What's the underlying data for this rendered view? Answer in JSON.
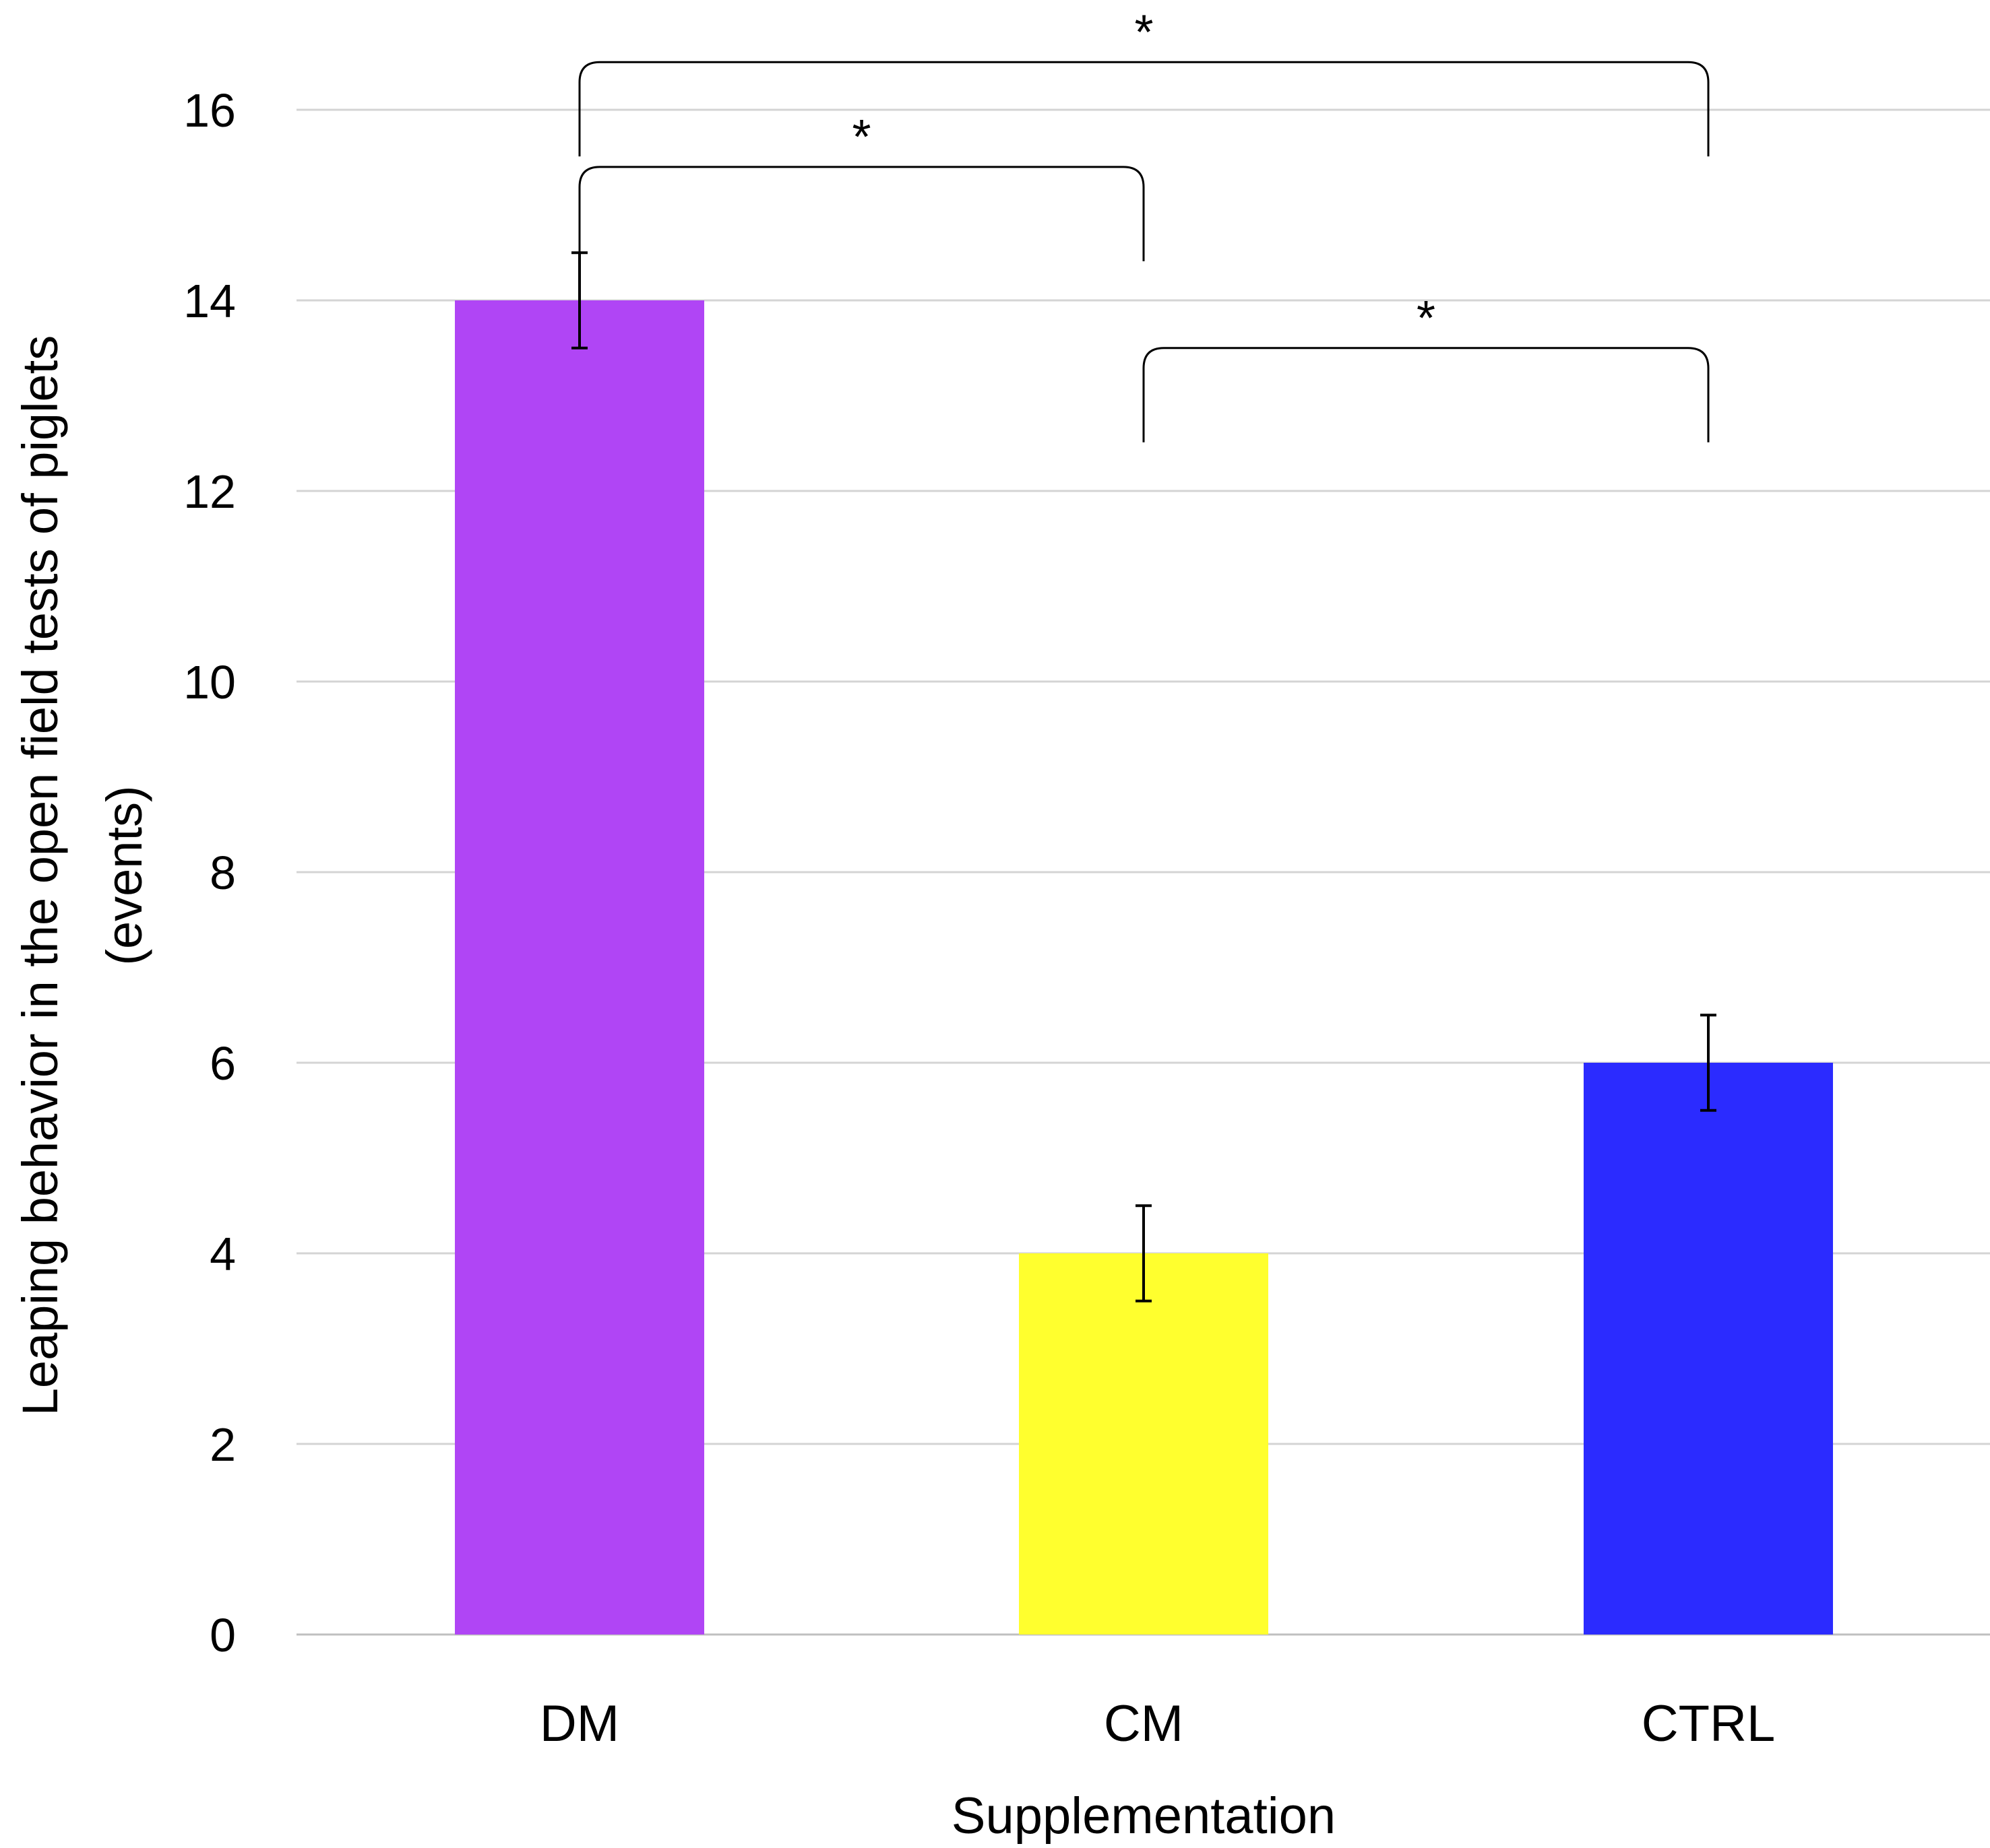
{
  "chart_data": {
    "type": "bar",
    "title": "",
    "xlabel": "Supplementation",
    "ylabel_line1": "Leaping behavior in the open field tests of piglets",
    "ylabel_line2": "(events)",
    "ylim": [
      0,
      16
    ],
    "yticks": [
      "0",
      "2",
      "4",
      "6",
      "8",
      "10",
      "12",
      "14",
      "16"
    ],
    "ytick_values": [
      0,
      2,
      4,
      6,
      8,
      10,
      12,
      14,
      16
    ],
    "grid": true,
    "legend": "none",
    "categories": [
      "DM",
      "CM",
      "CTRL"
    ],
    "values": [
      14,
      4,
      6
    ],
    "errors": [
      0.5,
      0.5,
      0.5
    ],
    "colors": [
      "#b045f5",
      "#ffff2e",
      "#2b2bff"
    ],
    "significance": [
      {
        "from": 0,
        "to": 2,
        "label": "*",
        "level": 16.5
      },
      {
        "from": 0,
        "to": 1,
        "label": "*",
        "level": 15.4
      },
      {
        "from": 1,
        "to": 2,
        "label": "*",
        "level": 13.5
      }
    ]
  }
}
